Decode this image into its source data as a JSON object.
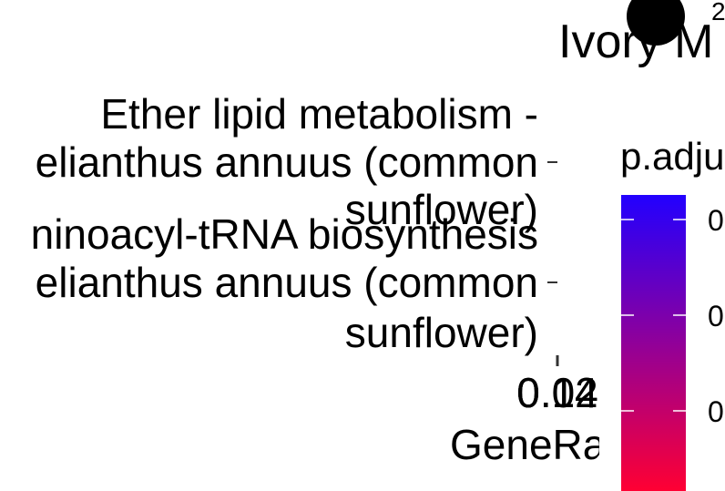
{
  "chart_data": {
    "type": "scatter",
    "title": "Ivory M",
    "xlabel": "GeneRa",
    "ylabel": "",
    "x_tick_labels": [
      "0.04",
      "0.12",
      "0.14"
    ],
    "categories": [
      [
        "Ether lipid metabolism -",
        "elianthus annuus (common",
        "sunflower)"
      ],
      [
        "ninoacyl-tRNA biosynthesis",
        "elianthus annuus (common",
        "sunflower)"
      ]
    ],
    "size_legend": {
      "label": "2"
    },
    "color_legend": {
      "title": "p.adju",
      "tick_labels": [
        "0",
        "0",
        "0"
      ],
      "low_color": "#ff0033",
      "high_color": "#2200ff"
    },
    "grid": false,
    "legend_position": "right"
  }
}
